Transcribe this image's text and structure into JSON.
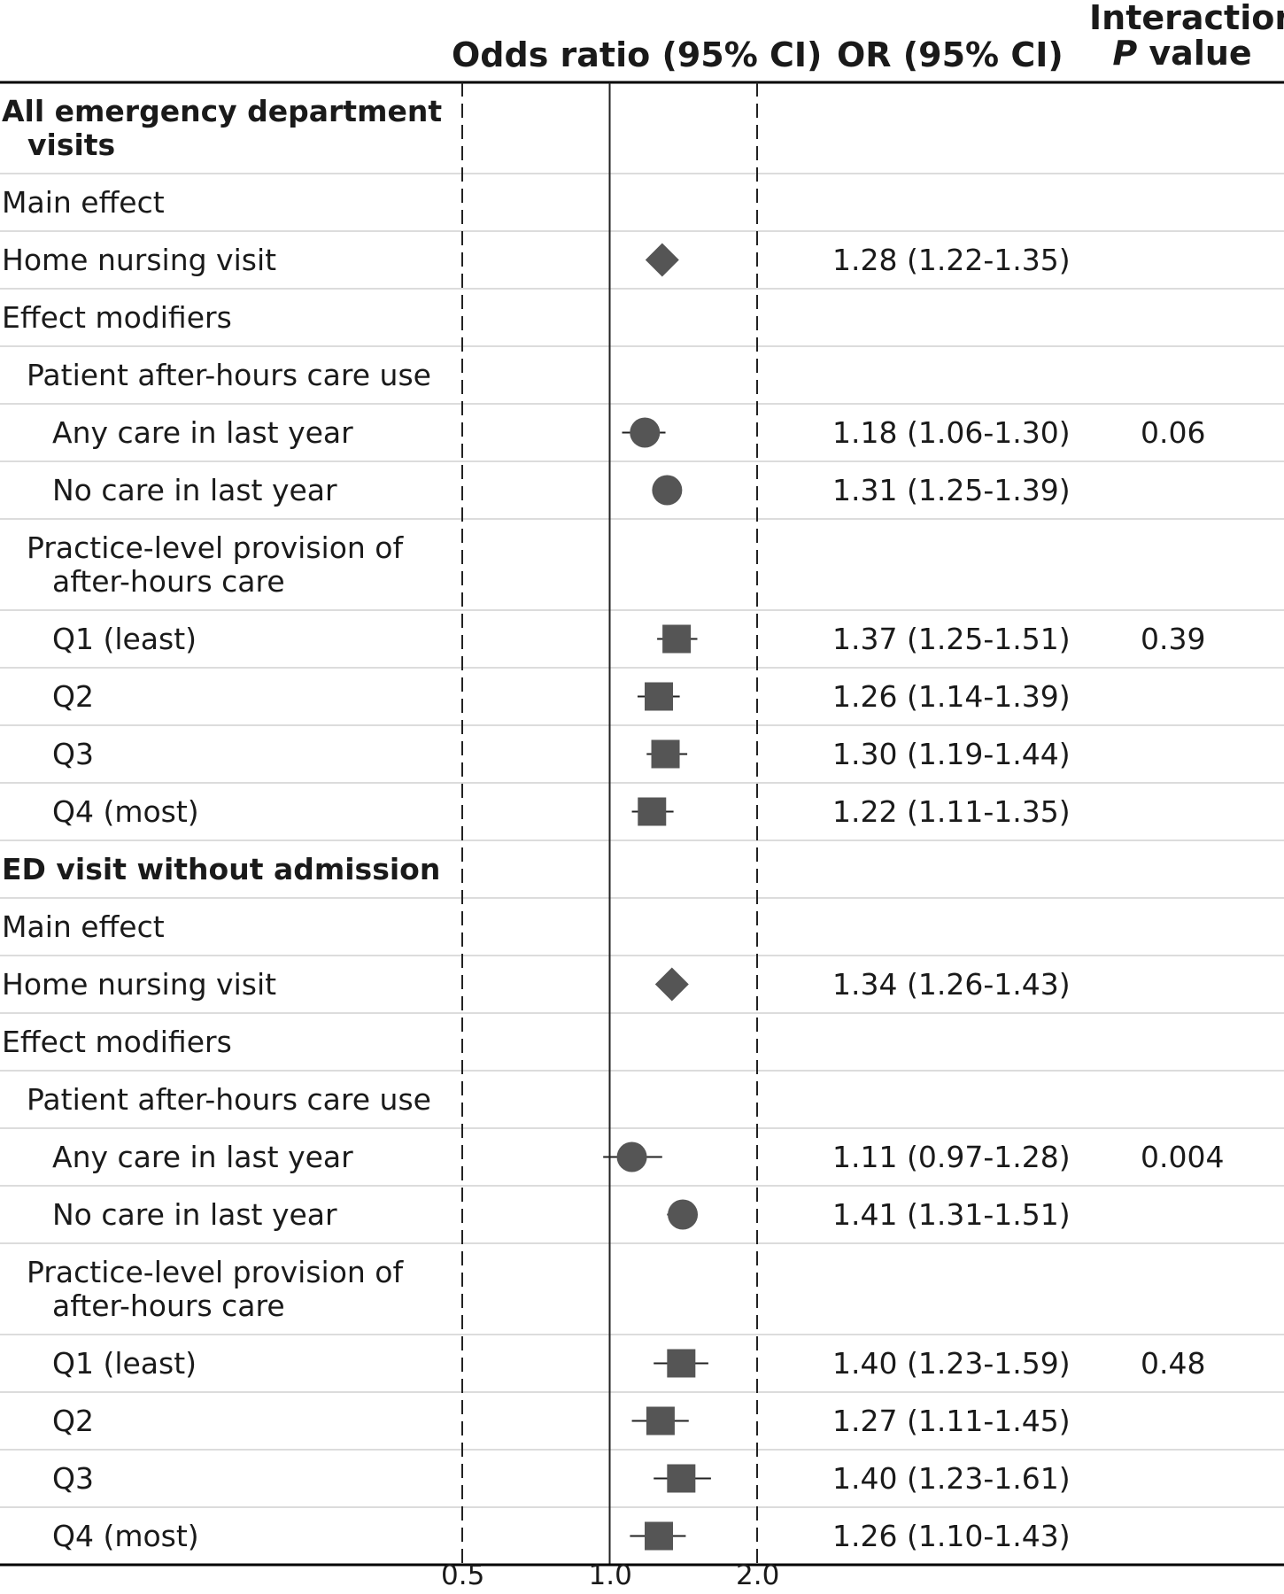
{
  "chart_data": {
    "type": "forest",
    "headers": {
      "odds_ratio": "Odds ratio (95% CI)",
      "or_ci": "OR (95% CI)",
      "interaction_line1": "Interaction",
      "interaction_line2_p": "P",
      "interaction_line2_rest": " value"
    },
    "x_axis": {
      "scale": "log",
      "ticks": [
        "0.5",
        "1.0",
        "2.0"
      ],
      "tick_values": [
        0.5,
        1.0,
        2.0
      ],
      "reference": 1.0,
      "xlim": [
        0.5,
        2.0
      ]
    },
    "rows": [
      {
        "label": [
          "All emergency department",
          "visits"
        ],
        "indent": 0,
        "bold": true
      },
      {
        "label": [
          "Main effect"
        ],
        "indent": 0
      },
      {
        "label": [
          "Home nursing visit"
        ],
        "indent": 0,
        "marker": "diamond",
        "or": 1.28,
        "lo": 1.22,
        "hi": 1.35,
        "ci_text": "1.28 (1.22-1.35)"
      },
      {
        "label": [
          "Effect modifiers"
        ],
        "indent": 0
      },
      {
        "label": [
          "Patient after-hours care use"
        ],
        "indent": 1
      },
      {
        "label": [
          "Any care in last year"
        ],
        "indent": 2,
        "marker": "circle",
        "or": 1.18,
        "lo": 1.06,
        "hi": 1.3,
        "ci_text": "1.18 (1.06-1.30)",
        "p": "0.06"
      },
      {
        "label": [
          "No care in last year"
        ],
        "indent": 2,
        "marker": "circle",
        "or": 1.31,
        "lo": 1.25,
        "hi": 1.39,
        "ci_text": "1.31 (1.25-1.39)"
      },
      {
        "label": [
          "Practice-level provision of",
          "after-hours care"
        ],
        "indent": 1
      },
      {
        "label": [
          "Q1 (least)"
        ],
        "indent": 2,
        "marker": "square",
        "or": 1.37,
        "lo": 1.25,
        "hi": 1.51,
        "ci_text": "1.37 (1.25-1.51)",
        "p": "0.39"
      },
      {
        "label": [
          "Q2"
        ],
        "indent": 2,
        "marker": "square",
        "or": 1.26,
        "lo": 1.14,
        "hi": 1.39,
        "ci_text": "1.26 (1.14-1.39)"
      },
      {
        "label": [
          "Q3"
        ],
        "indent": 2,
        "marker": "square",
        "or": 1.3,
        "lo": 1.19,
        "hi": 1.44,
        "ci_text": "1.30 (1.19-1.44)"
      },
      {
        "label": [
          "Q4 (most)"
        ],
        "indent": 2,
        "marker": "square",
        "or": 1.22,
        "lo": 1.11,
        "hi": 1.35,
        "ci_text": "1.22 (1.11-1.35)"
      },
      {
        "label": [
          "ED visit without admission"
        ],
        "indent": 0,
        "bold": true
      },
      {
        "label": [
          "Main effect"
        ],
        "indent": 0
      },
      {
        "label": [
          "Home nursing visit"
        ],
        "indent": 0,
        "marker": "diamond",
        "or": 1.34,
        "lo": 1.26,
        "hi": 1.43,
        "ci_text": "1.34 (1.26-1.43)"
      },
      {
        "label": [
          "Effect modifiers"
        ],
        "indent": 0
      },
      {
        "label": [
          "Patient after-hours care use"
        ],
        "indent": 1
      },
      {
        "label": [
          "Any care in last year"
        ],
        "indent": 2,
        "marker": "circle",
        "or": 1.11,
        "lo": 0.97,
        "hi": 1.28,
        "ci_text": "1.11 (0.97-1.28)",
        "p": "0.004"
      },
      {
        "label": [
          "No care in last year"
        ],
        "indent": 2,
        "marker": "circle",
        "or": 1.41,
        "lo": 1.31,
        "hi": 1.51,
        "ci_text": "1.41 (1.31-1.51)"
      },
      {
        "label": [
          "Practice-level provision of",
          "after-hours care"
        ],
        "indent": 1
      },
      {
        "label": [
          "Q1 (least)"
        ],
        "indent": 2,
        "marker": "square",
        "or": 1.4,
        "lo": 1.23,
        "hi": 1.59,
        "ci_text": "1.40 (1.23-1.59)",
        "p": "0.48"
      },
      {
        "label": [
          "Q2"
        ],
        "indent": 2,
        "marker": "square",
        "or": 1.27,
        "lo": 1.11,
        "hi": 1.45,
        "ci_text": "1.27 (1.11-1.45)"
      },
      {
        "label": [
          "Q3"
        ],
        "indent": 2,
        "marker": "square",
        "or": 1.4,
        "lo": 1.23,
        "hi": 1.61,
        "ci_text": "1.40 (1.23-1.61)"
      },
      {
        "label": [
          "Q4 (most)"
        ],
        "indent": 2,
        "marker": "square",
        "or": 1.26,
        "lo": 1.1,
        "hi": 1.43,
        "ci_text": "1.26 (1.10-1.43)"
      }
    ]
  },
  "colors": {
    "marker": "#555555",
    "rule": "#000000",
    "separator": "#dcdcdc",
    "text": "#1a1a1a"
  }
}
